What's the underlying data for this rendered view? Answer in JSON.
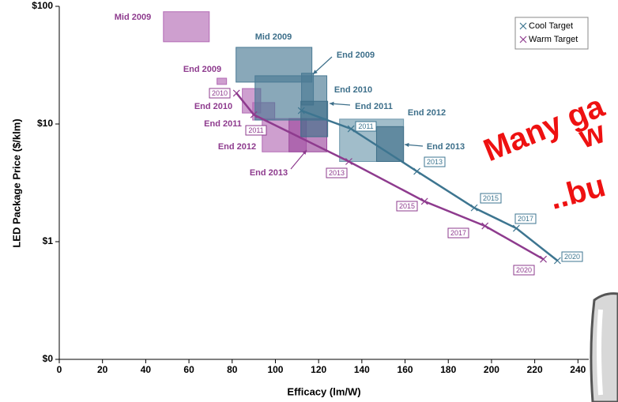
{
  "chart_data": {
    "type": "scatter",
    "x_label": "Efficacy (lm/W)",
    "y_label": "LED Package Price ($/klm)",
    "xlim": [
      0,
      245
    ],
    "xticks": [
      0,
      20,
      40,
      60,
      80,
      100,
      120,
      140,
      160,
      180,
      200,
      220,
      240
    ],
    "ylim": [
      0.1,
      100
    ],
    "log_y": true,
    "yticks": [
      {
        "value": 0.1,
        "label": "$0"
      },
      {
        "value": 1,
        "label": "$1"
      },
      {
        "value": 10,
        "label": "$10"
      },
      {
        "value": 100,
        "label": "$100"
      }
    ],
    "legend": "upper right",
    "series": [
      {
        "name": "Cool Target",
        "color": "#3d7590",
        "x": [
          112,
          135,
          165.5,
          192,
          211.5,
          230.5
        ],
        "values": [
          13,
          9.1,
          3.96,
          1.94,
          1.3,
          0.69
        ],
        "point_labels": [
          null,
          "2011",
          "2013",
          "2015",
          "2017",
          "2020"
        ]
      },
      {
        "name": "Warm Target",
        "color": "#8e3b8e",
        "x": [
          82,
          90,
          134,
          169,
          197,
          224
        ],
        "values": [
          18.3,
          12,
          4.8,
          2.2,
          1.36,
          0.71
        ],
        "point_labels": [
          "2010",
          "2011",
          "2013",
          "2015",
          "2017",
          "2020"
        ]
      }
    ],
    "boxes": [
      {
        "label": "Mid 2009",
        "color": "#b36bb5",
        "x": [
          48.2,
          69.4
        ],
        "y": [
          50,
          90
        ]
      },
      {
        "label": "End 2009",
        "color": "#b36bb5",
        "x": [
          73,
          77.4
        ],
        "y": [
          21.7,
          24.5
        ]
      },
      {
        "label": "End 2010",
        "color": "#b36bb5",
        "x": [
          84.7,
          93.2
        ],
        "y": [
          12.4,
          20
        ]
      },
      {
        "label": "End 2011",
        "color": "#b36bb5",
        "x": [
          89.5,
          99.7
        ],
        "y": [
          10.8,
          15.2
        ]
      },
      {
        "label": "End 2012",
        "color": "#b36bb5",
        "x": [
          93.9,
          114.3
        ],
        "y": [
          5.8,
          11.1
        ]
      },
      {
        "label": "End 2013",
        "color": "#9c4a9e",
        "x": [
          106.3,
          123.8
        ],
        "y": [
          5.8,
          11.1
        ]
      },
      {
        "label": "Mid 2009",
        "color": "#4a7a94",
        "x": [
          81.8,
          116.9
        ],
        "y": [
          22.7,
          44.8
        ]
      },
      {
        "label": "End 2009",
        "color": "#4a7a94",
        "x": [
          112.1,
          117.6
        ],
        "y": [
          14.5,
          27
        ]
      },
      {
        "label": "End 2010",
        "color": "#4a7a94",
        "x": [
          90.6,
          123.8
        ],
        "y": [
          10.8,
          25.7
        ]
      },
      {
        "label": "End 2011",
        "color": "#3f6f88",
        "x": [
          111.8,
          124.2
        ],
        "y": [
          7.8,
          15.6
        ]
      },
      {
        "label": "End 2012",
        "color": "#6f99ad",
        "x": [
          129.7,
          159.3
        ],
        "y": [
          4.8,
          11
        ]
      },
      {
        "label": "End 2013",
        "color": "#3f6f88",
        "x": [
          146.8,
          159.3
        ],
        "y": [
          4.8,
          9.5
        ]
      }
    ],
    "annotations": [
      "Many ga",
      "w",
      "..bu"
    ]
  }
}
